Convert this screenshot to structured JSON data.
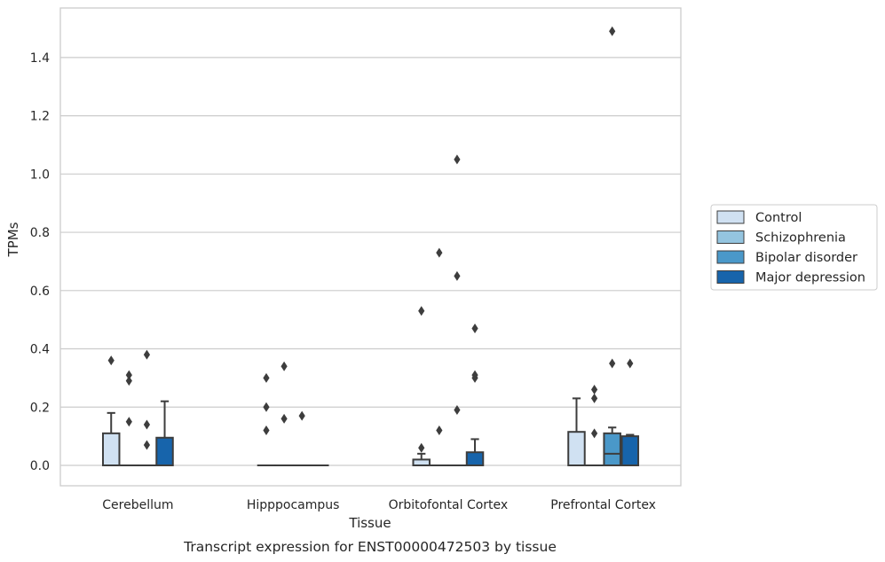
{
  "chart_data": {
    "type": "box",
    "title": "",
    "caption": "Transcript expression for ENST00000472503 by tissue",
    "xlabel": "Tissue",
    "ylabel": "TPMs",
    "ylim": [
      -0.07,
      1.57
    ],
    "yticks": [
      "0.0",
      "0.2",
      "0.4",
      "0.6",
      "0.8",
      "1.0",
      "1.2",
      "1.4"
    ],
    "grid": "horizontal",
    "legend_position": "right",
    "categories": [
      "Cerebellum",
      "Hipppocampus",
      "Orbitofontal Cortex",
      "Prefrontal Cortex"
    ],
    "series": [
      {
        "name": "Control",
        "color": "#d0e1f2",
        "boxes": [
          {
            "q1": 0.0,
            "median": 0.0,
            "q3": 0.11,
            "whisker_low": 0.0,
            "whisker_high": 0.18,
            "outliers": [
              0.36
            ]
          },
          {
            "q1": 0.0,
            "median": 0.0,
            "q3": 0.0,
            "whisker_low": 0.0,
            "whisker_high": 0.0,
            "outliers": [
              0.3,
              0.2,
              0.12
            ]
          },
          {
            "q1": 0.0,
            "median": 0.0,
            "q3": 0.02,
            "whisker_low": 0.0,
            "whisker_high": 0.04,
            "outliers": [
              0.53,
              0.06
            ]
          },
          {
            "q1": 0.0,
            "median": 0.0,
            "q3": 0.115,
            "whisker_low": 0.0,
            "whisker_high": 0.23,
            "outliers": []
          }
        ]
      },
      {
        "name": "Schizophrenia",
        "color": "#94c4df",
        "boxes": [
          {
            "q1": 0.0,
            "median": 0.0,
            "q3": 0.0,
            "whisker_low": 0.0,
            "whisker_high": 0.0,
            "outliers": [
              0.31,
              0.29,
              0.15
            ]
          },
          {
            "q1": 0.0,
            "median": 0.0,
            "q3": 0.0,
            "whisker_low": 0.0,
            "whisker_high": 0.0,
            "outliers": [
              0.34,
              0.16
            ]
          },
          {
            "q1": 0.0,
            "median": 0.0,
            "q3": 0.0,
            "whisker_low": 0.0,
            "whisker_high": 0.0,
            "outliers": [
              0.73,
              0.12
            ]
          },
          {
            "q1": 0.0,
            "median": 0.0,
            "q3": 0.0,
            "whisker_low": 0.0,
            "whisker_high": 0.0,
            "outliers": [
              0.26,
              0.23,
              0.11
            ]
          }
        ]
      },
      {
        "name": "Bipolar disorder",
        "color": "#4a98c9",
        "boxes": [
          {
            "q1": 0.0,
            "median": 0.0,
            "q3": 0.0,
            "whisker_low": 0.0,
            "whisker_high": 0.0,
            "outliers": [
              0.38,
              0.14,
              0.07
            ]
          },
          {
            "q1": 0.0,
            "median": 0.0,
            "q3": 0.0,
            "whisker_low": 0.0,
            "whisker_high": 0.0,
            "outliers": [
              0.17
            ]
          },
          {
            "q1": 0.0,
            "median": 0.0,
            "q3": 0.0,
            "whisker_low": 0.0,
            "whisker_high": 0.0,
            "outliers": [
              1.05,
              0.65,
              0.19
            ]
          },
          {
            "q1": 0.0,
            "median": 0.04,
            "q3": 0.11,
            "whisker_low": 0.0,
            "whisker_high": 0.13,
            "outliers": [
              1.49,
              0.35
            ]
          }
        ]
      },
      {
        "name": "Major depression",
        "color": "#1764ab",
        "boxes": [
          {
            "q1": 0.0,
            "median": 0.0,
            "q3": 0.095,
            "whisker_low": 0.0,
            "whisker_high": 0.22,
            "outliers": []
          },
          {
            "q1": 0.0,
            "median": 0.0,
            "q3": 0.0,
            "whisker_low": 0.0,
            "whisker_high": 0.0,
            "outliers": []
          },
          {
            "q1": 0.0,
            "median": 0.0,
            "q3": 0.045,
            "whisker_low": 0.0,
            "whisker_high": 0.09,
            "outliers": [
              0.47,
              0.31,
              0.3
            ]
          },
          {
            "q1": 0.0,
            "median": 0.0,
            "q3": 0.1,
            "whisker_low": 0.0,
            "whisker_high": 0.105,
            "outliers": [
              0.35
            ]
          }
        ]
      }
    ]
  }
}
